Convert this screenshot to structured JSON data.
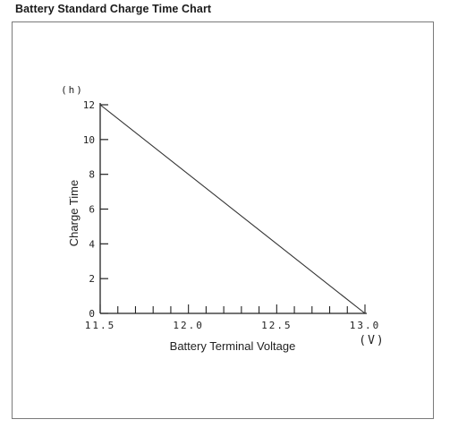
{
  "title": "Battery Standard Charge Time Chart",
  "chart_data": {
    "type": "line",
    "xlabel": "Battery Terminal Voltage",
    "ylabel": "Charge Time",
    "x_unit": "(V)",
    "y_unit": "(h)",
    "xlim": [
      11.5,
      13.0
    ],
    "ylim": [
      0,
      12
    ],
    "x_ticks": [
      "11.5",
      "12.0",
      "12.5",
      "13.0"
    ],
    "x_tick_values": [
      11.5,
      12.0,
      12.5,
      13.0
    ],
    "y_ticks": [
      "0",
      "2",
      "4",
      "6",
      "8",
      "10",
      "12"
    ],
    "y_tick_values": [
      0,
      2,
      4,
      6,
      8,
      10,
      12
    ],
    "x_minor_step": 0.1,
    "grid": false,
    "series": [
      {
        "x": [
          11.5,
          13.0
        ],
        "y": [
          12,
          0
        ]
      }
    ]
  }
}
